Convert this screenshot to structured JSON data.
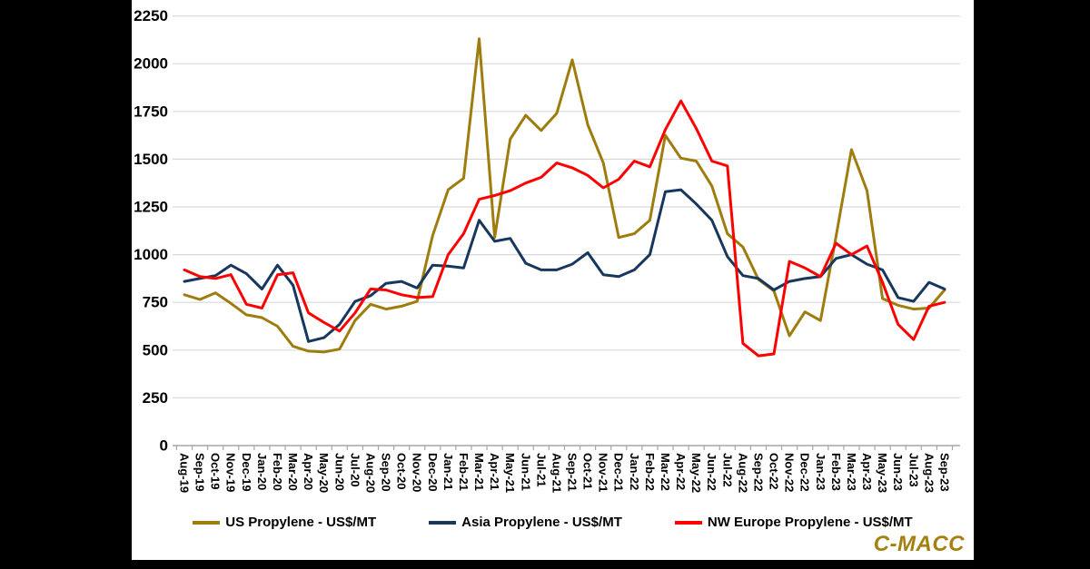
{
  "watermark": "C-MACC",
  "colors": {
    "background_bars": "#000000",
    "panel": "#ffffff",
    "gridline": "#d9d9d9",
    "axis": "#a6a6a6",
    "tick_label": "#000000",
    "watermark_gold": "#A5800F"
  },
  "chart_data": {
    "type": "line",
    "title": "",
    "xlabel": "",
    "ylabel": "",
    "ylim": [
      0,
      2250
    ],
    "yticks": [
      0,
      250,
      500,
      750,
      1000,
      1250,
      1500,
      1750,
      2000,
      2250
    ],
    "grid": true,
    "legend_position": "bottom",
    "categories": [
      "Aug-19",
      "Sep-19",
      "Oct-19",
      "Nov-19",
      "Dec-19",
      "Jan-20",
      "Feb-20",
      "Mar-20",
      "Apr-20",
      "May-20",
      "Jun-20",
      "Jul-20",
      "Aug-20",
      "Sep-20",
      "Oct-20",
      "Nov-20",
      "Dec-20",
      "Jan-21",
      "Feb-21",
      "Mar-21",
      "Apr-21",
      "May-21",
      "Jun-21",
      "Jul-21",
      "Aug-21",
      "Sep-21",
      "Oct-21",
      "Nov-21",
      "Dec-21",
      "Jan-22",
      "Feb-22",
      "Mar-22",
      "Apr-22",
      "May-22",
      "Jun-22",
      "Jul-22",
      "Aug-22",
      "Sep-22",
      "Oct-22",
      "Nov-22",
      "Dec-22",
      "Jan-23",
      "Feb-23",
      "Mar-23",
      "Apr-23",
      "May-23",
      "Jun-23",
      "Jul-23",
      "Aug-23",
      "Sep-23"
    ],
    "series": [
      {
        "name": "US Propylene - US$/MT",
        "color": "#9E7C0E",
        "values": [
          790,
          765,
          800,
          745,
          685,
          670,
          625,
          520,
          495,
          490,
          505,
          655,
          740,
          715,
          730,
          755,
          1100,
          1340,
          1400,
          2130,
          1090,
          1605,
          1730,
          1650,
          1740,
          2020,
          1680,
          1480,
          1090,
          1110,
          1180,
          1625,
          1505,
          1490,
          1360,
          1110,
          1040,
          870,
          810,
          575,
          700,
          655,
          1095,
          1550,
          1335,
          770,
          735,
          715,
          720,
          815
        ]
      },
      {
        "name": "Asia Propylene - US$/MT",
        "color": "#17375E",
        "values": [
          860,
          875,
          890,
          945,
          900,
          820,
          945,
          840,
          545,
          565,
          635,
          755,
          785,
          850,
          860,
          825,
          945,
          940,
          930,
          1180,
          1070,
          1085,
          955,
          920,
          920,
          950,
          1010,
          895,
          885,
          920,
          1000,
          1330,
          1340,
          1265,
          1180,
          990,
          890,
          875,
          815,
          860,
          875,
          885,
          980,
          1000,
          950,
          920,
          775,
          755,
          855,
          820
        ]
      },
      {
        "name": "NW Europe Propylene - US$/MT",
        "color": "#FF0000",
        "values": [
          920,
          885,
          875,
          895,
          740,
          720,
          895,
          905,
          695,
          645,
          600,
          695,
          820,
          815,
          790,
          775,
          780,
          1000,
          1110,
          1290,
          1310,
          1335,
          1375,
          1405,
          1480,
          1455,
          1415,
          1350,
          1395,
          1490,
          1460,
          1655,
          1805,
          1660,
          1490,
          1465,
          535,
          470,
          480,
          965,
          930,
          885,
          1060,
          1000,
          1045,
          855,
          635,
          555,
          730,
          750
        ]
      }
    ]
  }
}
